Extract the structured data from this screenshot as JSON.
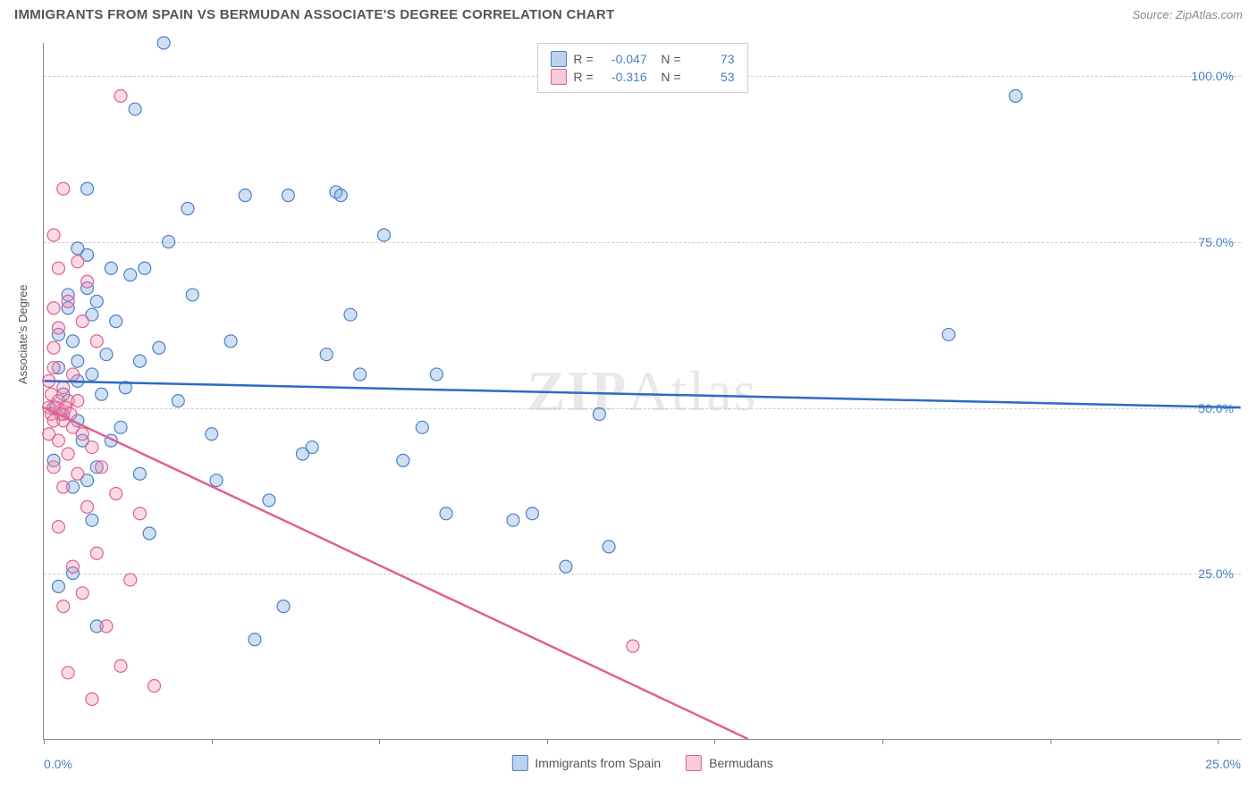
{
  "title": "IMMIGRANTS FROM SPAIN VS BERMUDAN ASSOCIATE'S DEGREE CORRELATION CHART",
  "source": "Source: ZipAtlas.com",
  "yaxis_label": "Associate's Degree",
  "watermark": "ZIPAtlas",
  "chart": {
    "type": "scatter",
    "background_color": "#ffffff",
    "grid_color": "#cccccc",
    "axis_color": "#888888",
    "xlim": [
      0,
      25
    ],
    "ylim": [
      0,
      105
    ],
    "yticks": [
      {
        "v": 25,
        "label": "25.0%"
      },
      {
        "v": 50,
        "label": "50.0%"
      },
      {
        "v": 75,
        "label": "75.0%"
      },
      {
        "v": 100,
        "label": "100.0%"
      }
    ],
    "xticks": [
      0,
      3.5,
      7,
      10.5,
      14,
      17.5,
      21,
      24.5
    ],
    "xtick_labels": {
      "first": "0.0%",
      "last": "25.0%"
    },
    "marker_radius": 7,
    "series": [
      {
        "key": "spain",
        "label": "Immigrants from Spain",
        "color_fill": "rgba(120,165,220,0.35)",
        "color_stroke": "#4a7fc9",
        "R": "-0.047",
        "N": "73",
        "regression": {
          "y_at_x0": 54,
          "y_at_x25": 50,
          "line_color": "#2e6ac4"
        },
        "points": [
          [
            2.5,
            105
          ],
          [
            20.3,
            97
          ],
          [
            1.9,
            95
          ],
          [
            0.9,
            83
          ],
          [
            4.2,
            82
          ],
          [
            5.1,
            82
          ],
          [
            6.1,
            82.5
          ],
          [
            6.2,
            82
          ],
          [
            3.0,
            80
          ],
          [
            7.1,
            76
          ],
          [
            0.7,
            74
          ],
          [
            1.4,
            71
          ],
          [
            2.1,
            71
          ],
          [
            1.8,
            70
          ],
          [
            0.9,
            68
          ],
          [
            3.1,
            67
          ],
          [
            0.5,
            65
          ],
          [
            1.0,
            64
          ],
          [
            1.5,
            63
          ],
          [
            18.9,
            61
          ],
          [
            0.6,
            60
          ],
          [
            2.4,
            59
          ],
          [
            5.9,
            58
          ],
          [
            0.3,
            56
          ],
          [
            1.0,
            55
          ],
          [
            0.7,
            54
          ],
          [
            6.6,
            55
          ],
          [
            8.2,
            55
          ],
          [
            0.4,
            52
          ],
          [
            1.2,
            52
          ],
          [
            11.6,
            49
          ],
          [
            0.7,
            48
          ],
          [
            1.6,
            47
          ],
          [
            3.5,
            46
          ],
          [
            5.4,
            43
          ],
          [
            5.6,
            44
          ],
          [
            7.5,
            42
          ],
          [
            0.2,
            42
          ],
          [
            1.1,
            41
          ],
          [
            2.0,
            40
          ],
          [
            0.9,
            39
          ],
          [
            8.4,
            34
          ],
          [
            9.8,
            33
          ],
          [
            10.2,
            34
          ],
          [
            1.0,
            33
          ],
          [
            2.2,
            31
          ],
          [
            11.8,
            29
          ],
          [
            10.9,
            26
          ],
          [
            0.6,
            25
          ],
          [
            0.3,
            23
          ],
          [
            5.0,
            20
          ],
          [
            1.1,
            17
          ],
          [
            4.4,
            15
          ],
          [
            0.7,
            57
          ],
          [
            1.3,
            58
          ],
          [
            0.2,
            50
          ],
          [
            0.4,
            49
          ],
          [
            0.8,
            45
          ],
          [
            1.7,
            53
          ],
          [
            2.8,
            51
          ],
          [
            3.6,
            39
          ],
          [
            4.7,
            36
          ],
          [
            0.5,
            67
          ],
          [
            0.9,
            73
          ],
          [
            2.6,
            75
          ],
          [
            1.1,
            66
          ],
          [
            6.4,
            64
          ],
          [
            7.9,
            47
          ],
          [
            3.9,
            60
          ],
          [
            2.0,
            57
          ],
          [
            0.3,
            61
          ],
          [
            1.4,
            45
          ],
          [
            0.6,
            38
          ]
        ]
      },
      {
        "key": "bermudans",
        "label": "Bermudans",
        "color_fill": "rgba(240,150,180,0.35)",
        "color_stroke": "#e06090",
        "R": "-0.316",
        "N": "53",
        "regression": {
          "y_at_x0": 50,
          "y_at_x25": -35,
          "solid_until_x": 14.7,
          "line_color": "#e06090"
        },
        "points": [
          [
            1.6,
            97
          ],
          [
            0.4,
            83
          ],
          [
            0.2,
            76
          ],
          [
            0.7,
            72
          ],
          [
            0.3,
            71
          ],
          [
            0.9,
            69
          ],
          [
            0.5,
            66
          ],
          [
            0.2,
            65
          ],
          [
            0.8,
            63
          ],
          [
            0.3,
            62
          ],
          [
            1.1,
            60
          ],
          [
            0.2,
            56
          ],
          [
            0.6,
            55
          ],
          [
            0.1,
            54
          ],
          [
            0.4,
            53
          ],
          [
            0.15,
            52
          ],
          [
            0.3,
            51
          ],
          [
            0.5,
            51
          ],
          [
            0.7,
            51
          ],
          [
            0.1,
            50
          ],
          [
            0.25,
            50
          ],
          [
            0.45,
            50
          ],
          [
            0.15,
            49
          ],
          [
            0.35,
            49
          ],
          [
            0.55,
            49
          ],
          [
            0.2,
            48
          ],
          [
            0.4,
            48
          ],
          [
            0.6,
            47
          ],
          [
            0.1,
            46
          ],
          [
            0.8,
            46
          ],
          [
            0.3,
            45
          ],
          [
            1.0,
            44
          ],
          [
            0.5,
            43
          ],
          [
            0.2,
            41
          ],
          [
            1.2,
            41
          ],
          [
            0.7,
            40
          ],
          [
            0.4,
            38
          ],
          [
            1.5,
            37
          ],
          [
            0.9,
            35
          ],
          [
            2.0,
            34
          ],
          [
            0.3,
            32
          ],
          [
            1.1,
            28
          ],
          [
            0.6,
            26
          ],
          [
            1.8,
            24
          ],
          [
            0.8,
            22
          ],
          [
            0.4,
            20
          ],
          [
            1.3,
            17
          ],
          [
            12.3,
            14
          ],
          [
            1.6,
            11
          ],
          [
            0.5,
            10
          ],
          [
            2.3,
            8
          ],
          [
            1.0,
            6
          ],
          [
            0.2,
            59
          ]
        ]
      }
    ]
  },
  "legend_bottom": [
    {
      "key": "spain",
      "label": "Immigrants from Spain"
    },
    {
      "key": "bermudans",
      "label": "Bermudans"
    }
  ]
}
